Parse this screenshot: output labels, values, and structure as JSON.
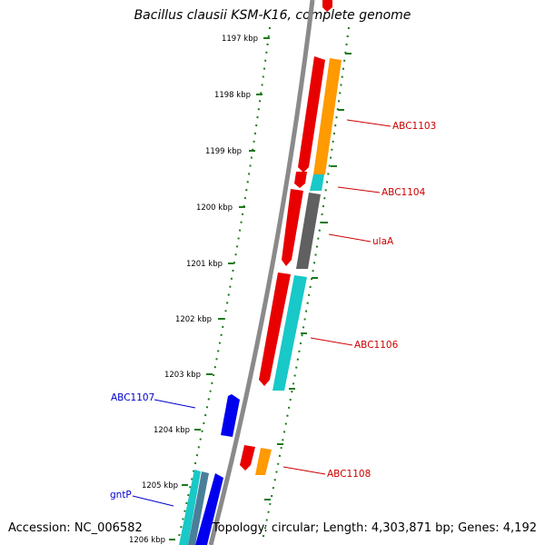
{
  "title": "Bacillus clausii KSM-K16, complete genome",
  "footer": {
    "accession": "Accession: NC_006582",
    "topology": "Topology: circular; Length: 4,303,871 bp; Genes: 4,192"
  },
  "scale_ticks": [
    "1197 kbp",
    "1198 kbp",
    "1199 kbp",
    "1200 kbp",
    "1201 kbp",
    "1202 kbp",
    "1203 kbp",
    "1204 kbp",
    "1205 kbp",
    "1206 kbp"
  ],
  "gene_labels": [
    {
      "id": "abc1103",
      "text": "ABC1103",
      "strand": "forward"
    },
    {
      "id": "abc1104",
      "text": "ABC1104",
      "strand": "forward"
    },
    {
      "id": "ulaa",
      "text": "ulaA",
      "strand": "forward"
    },
    {
      "id": "abc1106",
      "text": "ABC1106",
      "strand": "forward"
    },
    {
      "id": "abc1107",
      "text": "ABC1107",
      "strand": "reverse"
    },
    {
      "id": "abc1108",
      "text": "ABC1108",
      "strand": "forward"
    },
    {
      "id": "gntp",
      "text": "gntP",
      "strand": "reverse"
    }
  ],
  "colors": {
    "backbone": "#8a8a8a",
    "tick_green": "#1a7a1a",
    "forward_label": "#cc0000",
    "reverse_label": "#0000cc",
    "red_gene": "#e80000",
    "orange_gene": "#ff9a00",
    "cyan_gene": "#19c8c8",
    "gray_gene": "#606060",
    "blue_gene": "#0000ee",
    "steel_gene": "#4a7f9a"
  }
}
